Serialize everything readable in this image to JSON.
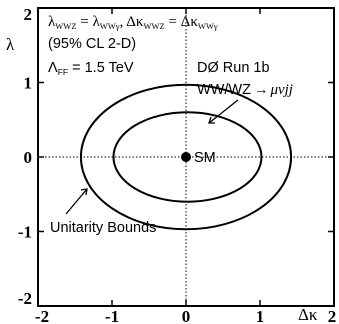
{
  "chart_data": {
    "type": "line",
    "xlabel": "Δκ",
    "ylabel": "λ",
    "xlim": [
      -2,
      2
    ],
    "ylim": [
      -2,
      2
    ],
    "xticks": [
      -2,
      -1,
      0,
      1,
      2
    ],
    "yticks": [
      -2,
      -1,
      0,
      1,
      2
    ],
    "xtick_labels": [
      "-2",
      "-1",
      "0",
      "1",
      "2"
    ],
    "ytick_labels": [
      "-2",
      "-1",
      "0",
      "1",
      "2"
    ],
    "grid": "dotted at 0",
    "series": [
      {
        "label": "Unitarity Bounds",
        "shape": "ellipse",
        "center": [
          0,
          0
        ],
        "semi_axes": [
          1.42,
          0.97
        ]
      },
      {
        "label": "DØ Run 1b WW/WZ → μνjj (95% CL 2-D)",
        "shape": "ellipse",
        "center": [
          0.02,
          0.0
        ],
        "semi_axes": [
          1.0,
          0.6
        ]
      }
    ],
    "points": [
      {
        "label": "SM",
        "x": 0,
        "y": 0
      }
    ],
    "annotations": {
      "coupling_relation": "λ_WWZ = λ_WWγ, Δκ_WWZ = Δκ_WWγ",
      "cl": "(95% CL 2-D)",
      "lambda_ff": "Λ_FF = 1.5 TeV",
      "experiment": "DØ Run 1b",
      "channel_prefix": "WW/WZ",
      "channel_suffix": "μνjj",
      "sm": "SM",
      "unitarity": "Unitarity Bounds"
    }
  }
}
